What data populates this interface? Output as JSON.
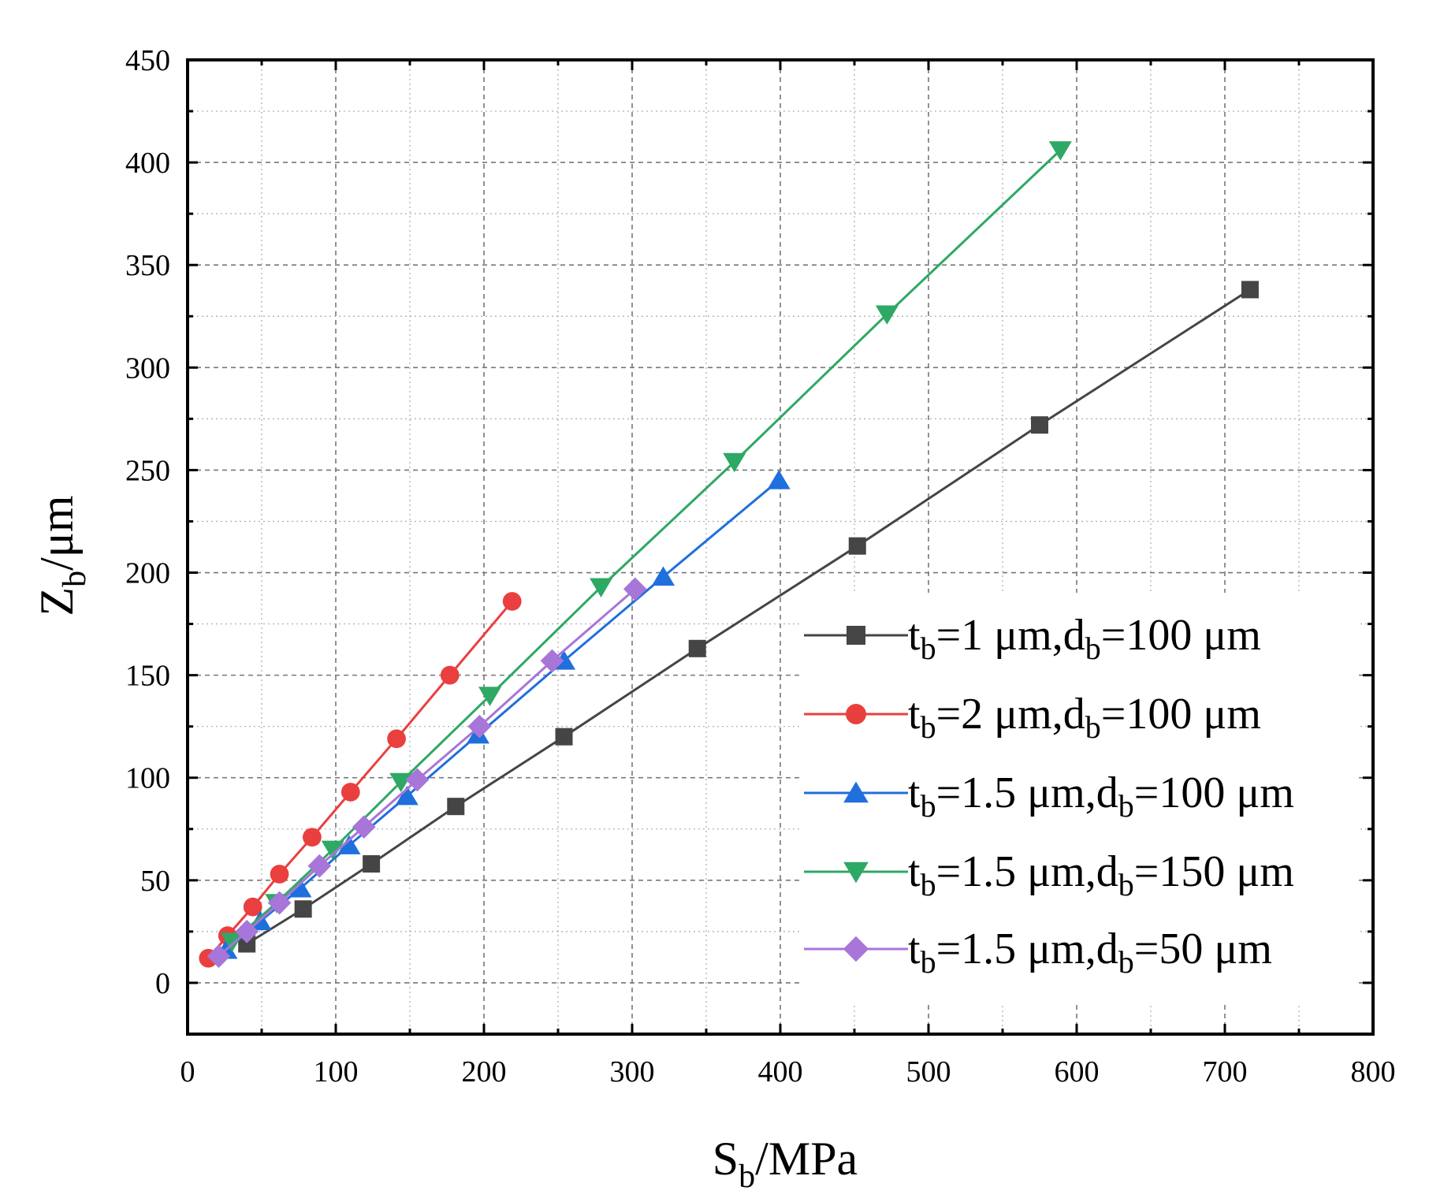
{
  "chart_data": {
    "type": "line",
    "xlabel": {
      "main": "S",
      "sub": "b",
      "rest": "/MPa"
    },
    "ylabel": {
      "main": "Z",
      "sub": "b",
      "rest": "/μm"
    },
    "xlim": [
      0,
      800
    ],
    "ylim": [
      -25,
      450
    ],
    "xticks": [
      0,
      100,
      200,
      300,
      400,
      500,
      600,
      700,
      800
    ],
    "yticks": [
      0,
      50,
      100,
      150,
      200,
      250,
      300,
      350,
      400,
      450
    ],
    "grid": true,
    "legend_position": "right",
    "series": [
      {
        "name": "tb=1 μm,db=100 μm",
        "label_parts": [
          "t",
          "b",
          "=1 μm,d",
          "b",
          "=100 μm"
        ],
        "color": "#454545",
        "marker": "square",
        "x": [
          40,
          78,
          124,
          181,
          254,
          344,
          452,
          575,
          717
        ],
        "y": [
          19,
          36,
          58,
          86,
          120,
          163,
          213,
          272,
          338
        ]
      },
      {
        "name": "tb=2 μm,db=100 μm",
        "label_parts": [
          "t",
          "b",
          "=2 μm,d",
          "b",
          "=100 μm"
        ],
        "color": "#ea3f3f",
        "marker": "circle",
        "x": [
          14,
          27,
          44,
          62,
          84,
          110,
          141,
          177,
          219
        ],
        "y": [
          12,
          23,
          37,
          53,
          71,
          93,
          119,
          150,
          186
        ]
      },
      {
        "name": "tb=1.5 μm,db=100 μm",
        "label_parts": [
          "t",
          "b",
          "=1.5 μm,d",
          "b",
          "=100 μm"
        ],
        "color": "#1f6fdc",
        "marker": "triangle-up",
        "x": [
          26,
          49,
          76,
          109,
          148,
          196,
          254,
          321,
          399
        ],
        "y": [
          16,
          30,
          46,
          67,
          91,
          121,
          157,
          198,
          245
        ]
      },
      {
        "name": "tb=1.5 μm,db=150 μm",
        "label_parts": [
          "t",
          "b",
          "=1.5 μm,d",
          "b",
          "=150 μm"
        ],
        "color": "#2ea865",
        "marker": "triangle-down",
        "x": [
          30,
          60,
          98,
          144,
          204,
          279,
          369,
          472,
          589
        ],
        "y": [
          20,
          39,
          65,
          98,
          140,
          193,
          254,
          326,
          406
        ]
      },
      {
        "name": "tb=1.5 μm,db=50 μm",
        "label_parts": [
          "t",
          "b",
          "=1.5 μm,d",
          "b",
          "=50 μm"
        ],
        "color": "#a875d8",
        "marker": "diamond",
        "x": [
          21,
          40,
          62,
          89,
          119,
          155,
          197,
          246,
          302
        ],
        "y": [
          13,
          25,
          39,
          57,
          76,
          99,
          125,
          157,
          192
        ]
      }
    ]
  }
}
